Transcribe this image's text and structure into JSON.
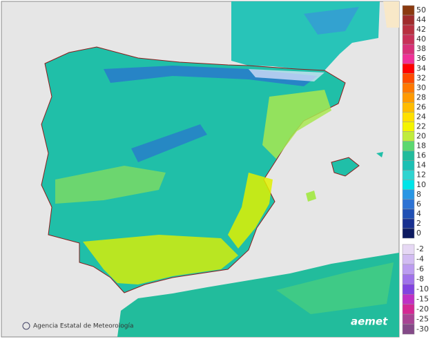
{
  "legend": {
    "upper": [
      {
        "value": 50,
        "color": "#8b3a10"
      },
      {
        "value": 44,
        "color": "#a02c2c"
      },
      {
        "value": 42,
        "color": "#b83040"
      },
      {
        "value": 40,
        "color": "#c83058"
      },
      {
        "value": 38,
        "color": "#d83078"
      },
      {
        "value": 36,
        "color": "#f03098"
      },
      {
        "value": 34,
        "color": "#ff0000"
      },
      {
        "value": 32,
        "color": "#ff4a00"
      },
      {
        "value": 30,
        "color": "#ff7800"
      },
      {
        "value": 28,
        "color": "#ff9a00"
      },
      {
        "value": 26,
        "color": "#ffbc00"
      },
      {
        "value": 24,
        "color": "#ffe000"
      },
      {
        "value": 22,
        "color": "#f4f400"
      },
      {
        "value": 20,
        "color": "#c0ec3c"
      },
      {
        "value": 18,
        "color": "#5cd870"
      },
      {
        "value": 16,
        "color": "#22bc9c"
      },
      {
        "value": 14,
        "color": "#1cc0b4"
      },
      {
        "value": 12,
        "color": "#30d4d0"
      },
      {
        "value": 10,
        "color": "#00e4e8"
      },
      {
        "value": 8,
        "color": "#2896e4"
      },
      {
        "value": 6,
        "color": "#2c72d4"
      },
      {
        "value": 4,
        "color": "#2050b4"
      },
      {
        "value": 2,
        "color": "#183090"
      },
      {
        "value": 0,
        "color": "#0c1a60"
      }
    ],
    "lower": [
      {
        "value": -2,
        "color": "#e6d8f4"
      },
      {
        "value": -4,
        "color": "#d2bcf2"
      },
      {
        "value": -6,
        "color": "#bc9cf0"
      },
      {
        "value": -8,
        "color": "#a072ea"
      },
      {
        "value": -10,
        "color": "#8244e0"
      },
      {
        "value": -15,
        "color": "#c030c4"
      },
      {
        "value": -20,
        "color": "#d42894"
      },
      {
        "value": -25,
        "color": "#a84494"
      },
      {
        "value": -30,
        "color": "#844a88"
      }
    ]
  },
  "credit": "Agencia Estatal de Meteorología",
  "logo": "aemet"
}
